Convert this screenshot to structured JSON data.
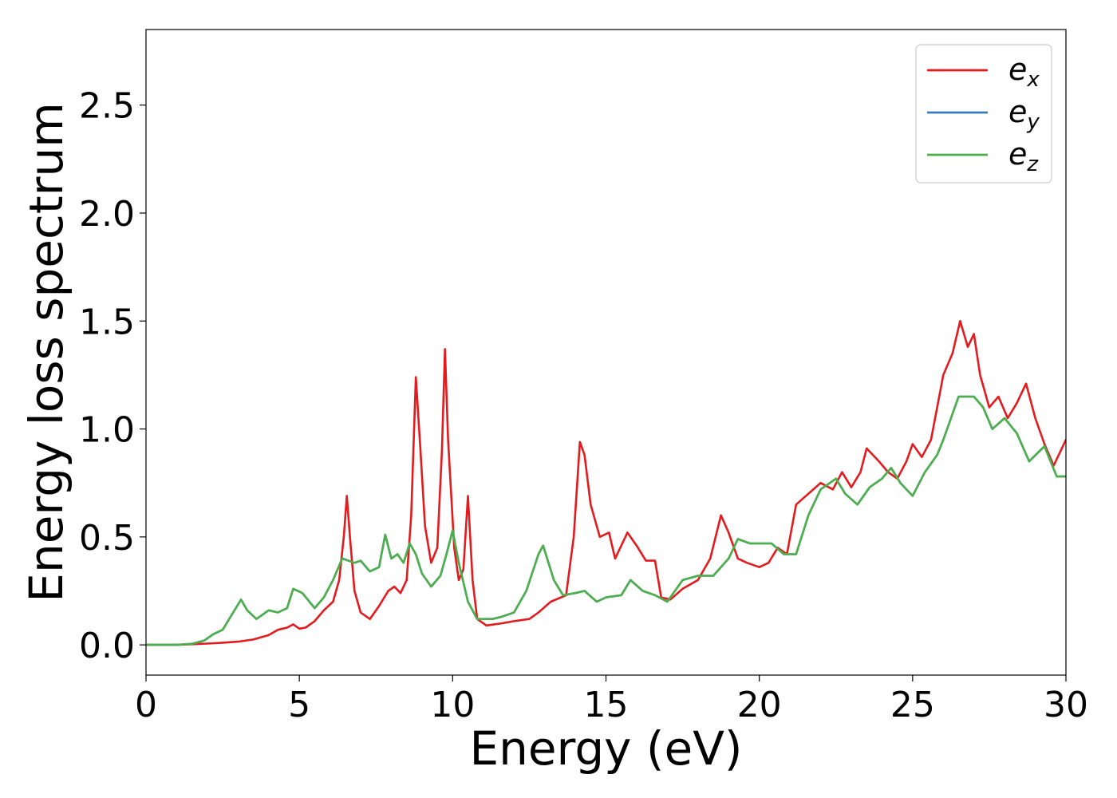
{
  "chart_data": {
    "type": "line",
    "title": "",
    "xlabel": "Energy (eV)",
    "ylabel": "Energy loss spectrum",
    "xlim": [
      0,
      30
    ],
    "ylim": [
      -0.14,
      2.85
    ],
    "x_ticks": [
      {
        "value": 0,
        "label": "0"
      },
      {
        "value": 5,
        "label": "5"
      },
      {
        "value": 10,
        "label": "10"
      },
      {
        "value": 15,
        "label": "15"
      },
      {
        "value": 20,
        "label": "20"
      },
      {
        "value": 25,
        "label": "25"
      },
      {
        "value": 30,
        "label": "30"
      }
    ],
    "y_ticks": [
      {
        "value": 0.0,
        "label": "0.0"
      },
      {
        "value": 0.5,
        "label": "0.5"
      },
      {
        "value": 1.0,
        "label": "1.0"
      },
      {
        "value": 1.5,
        "label": "1.5"
      },
      {
        "value": 2.0,
        "label": "2.0"
      },
      {
        "value": 2.5,
        "label": "2.5"
      }
    ],
    "grid": false,
    "legend_position": "top-right",
    "series": [
      {
        "name": "e",
        "subscript": "x",
        "color": "#e41a1c",
        "points": [
          [
            0,
            0
          ],
          [
            1,
            0
          ],
          [
            1.5,
            0.003
          ],
          [
            2,
            0.006
          ],
          [
            2.5,
            0.01
          ],
          [
            3,
            0.015
          ],
          [
            3.5,
            0.025
          ],
          [
            4,
            0.045
          ],
          [
            4.3,
            0.07
          ],
          [
            4.6,
            0.08
          ],
          [
            4.8,
            0.095
          ],
          [
            5,
            0.075
          ],
          [
            5.2,
            0.08
          ],
          [
            5.5,
            0.11
          ],
          [
            5.8,
            0.16
          ],
          [
            6.1,
            0.2
          ],
          [
            6.3,
            0.3
          ],
          [
            6.45,
            0.5
          ],
          [
            6.55,
            0.69
          ],
          [
            6.65,
            0.5
          ],
          [
            6.8,
            0.25
          ],
          [
            7,
            0.15
          ],
          [
            7.3,
            0.12
          ],
          [
            7.6,
            0.18
          ],
          [
            7.9,
            0.25
          ],
          [
            8.1,
            0.27
          ],
          [
            8.3,
            0.24
          ],
          [
            8.5,
            0.3
          ],
          [
            8.65,
            0.6
          ],
          [
            8.8,
            1.24
          ],
          [
            8.95,
            0.9
          ],
          [
            9.1,
            0.55
          ],
          [
            9.3,
            0.38
          ],
          [
            9.5,
            0.45
          ],
          [
            9.65,
            0.9
          ],
          [
            9.75,
            1.37
          ],
          [
            9.85,
            0.95
          ],
          [
            10.05,
            0.45
          ],
          [
            10.2,
            0.3
          ],
          [
            10.35,
            0.35
          ],
          [
            10.5,
            0.69
          ],
          [
            10.65,
            0.3
          ],
          [
            10.8,
            0.12
          ],
          [
            11.1,
            0.09
          ],
          [
            11.6,
            0.1
          ],
          [
            12,
            0.11
          ],
          [
            12.5,
            0.12
          ],
          [
            12.8,
            0.15
          ],
          [
            13.2,
            0.2
          ],
          [
            13.7,
            0.23
          ],
          [
            13.95,
            0.5
          ],
          [
            14.15,
            0.94
          ],
          [
            14.3,
            0.88
          ],
          [
            14.5,
            0.65
          ],
          [
            14.8,
            0.5
          ],
          [
            15.1,
            0.52
          ],
          [
            15.3,
            0.4
          ],
          [
            15.7,
            0.52
          ],
          [
            16,
            0.46
          ],
          [
            16.3,
            0.39
          ],
          [
            16.6,
            0.39
          ],
          [
            16.8,
            0.22
          ],
          [
            17.1,
            0.21
          ],
          [
            17.5,
            0.26
          ],
          [
            18,
            0.3
          ],
          [
            18.4,
            0.4
          ],
          [
            18.75,
            0.6
          ],
          [
            19,
            0.52
          ],
          [
            19.3,
            0.4
          ],
          [
            19.6,
            0.38
          ],
          [
            20,
            0.36
          ],
          [
            20.3,
            0.38
          ],
          [
            20.6,
            0.45
          ],
          [
            20.9,
            0.42
          ],
          [
            21.2,
            0.65
          ],
          [
            21.6,
            0.7
          ],
          [
            22,
            0.75
          ],
          [
            22.4,
            0.72
          ],
          [
            22.7,
            0.8
          ],
          [
            23,
            0.73
          ],
          [
            23.3,
            0.8
          ],
          [
            23.5,
            0.91
          ],
          [
            23.9,
            0.85
          ],
          [
            24.2,
            0.8
          ],
          [
            24.5,
            0.77
          ],
          [
            24.8,
            0.85
          ],
          [
            25,
            0.93
          ],
          [
            25.3,
            0.87
          ],
          [
            25.6,
            0.95
          ],
          [
            26,
            1.25
          ],
          [
            26.3,
            1.35
          ],
          [
            26.55,
            1.5
          ],
          [
            26.8,
            1.38
          ],
          [
            27,
            1.44
          ],
          [
            27.2,
            1.25
          ],
          [
            27.5,
            1.1
          ],
          [
            27.8,
            1.15
          ],
          [
            28.1,
            1.05
          ],
          [
            28.4,
            1.12
          ],
          [
            28.7,
            1.21
          ],
          [
            29,
            1.05
          ],
          [
            29.3,
            0.93
          ],
          [
            29.6,
            0.83
          ],
          [
            30,
            0.95
          ]
        ]
      },
      {
        "name": "e",
        "subscript": "y",
        "color": "#377eb8",
        "points": [
          [
            0,
            0
          ],
          [
            1,
            0
          ],
          [
            1.5,
            0.005
          ],
          [
            1.9,
            0.02
          ],
          [
            2.2,
            0.05
          ],
          [
            2.5,
            0.07
          ],
          [
            2.8,
            0.14
          ],
          [
            3.1,
            0.21
          ],
          [
            3.3,
            0.16
          ],
          [
            3.6,
            0.12
          ],
          [
            4,
            0.16
          ],
          [
            4.3,
            0.15
          ],
          [
            4.6,
            0.17
          ],
          [
            4.8,
            0.26
          ],
          [
            5.1,
            0.24
          ],
          [
            5.5,
            0.17
          ],
          [
            5.8,
            0.22
          ],
          [
            6.1,
            0.3
          ],
          [
            6.4,
            0.4
          ],
          [
            6.8,
            0.38
          ],
          [
            7,
            0.39
          ],
          [
            7.3,
            0.34
          ],
          [
            7.6,
            0.36
          ],
          [
            7.8,
            0.51
          ],
          [
            8,
            0.4
          ],
          [
            8.2,
            0.42
          ],
          [
            8.4,
            0.38
          ],
          [
            8.6,
            0.47
          ],
          [
            8.8,
            0.42
          ],
          [
            9,
            0.33
          ],
          [
            9.3,
            0.27
          ],
          [
            9.6,
            0.32
          ],
          [
            9.8,
            0.42
          ],
          [
            10,
            0.53
          ],
          [
            10.2,
            0.38
          ],
          [
            10.5,
            0.2
          ],
          [
            10.8,
            0.12
          ],
          [
            11.3,
            0.12
          ],
          [
            11.6,
            0.13
          ],
          [
            12,
            0.15
          ],
          [
            12.4,
            0.25
          ],
          [
            12.8,
            0.42
          ],
          [
            12.95,
            0.46
          ],
          [
            13.3,
            0.3
          ],
          [
            13.6,
            0.23
          ],
          [
            14,
            0.24
          ],
          [
            14.3,
            0.25
          ],
          [
            14.7,
            0.2
          ],
          [
            15,
            0.22
          ],
          [
            15.5,
            0.23
          ],
          [
            15.8,
            0.3
          ],
          [
            16.2,
            0.25
          ],
          [
            16.6,
            0.23
          ],
          [
            17,
            0.2
          ],
          [
            17.5,
            0.3
          ],
          [
            18,
            0.32
          ],
          [
            18.5,
            0.32
          ],
          [
            19,
            0.4
          ],
          [
            19.3,
            0.49
          ],
          [
            19.7,
            0.47
          ],
          [
            20,
            0.47
          ],
          [
            20.4,
            0.47
          ],
          [
            20.8,
            0.42
          ],
          [
            21.2,
            0.42
          ],
          [
            21.6,
            0.6
          ],
          [
            22,
            0.72
          ],
          [
            22.5,
            0.77
          ],
          [
            22.8,
            0.7
          ],
          [
            23.2,
            0.65
          ],
          [
            23.6,
            0.73
          ],
          [
            24,
            0.77
          ],
          [
            24.3,
            0.82
          ],
          [
            24.6,
            0.75
          ],
          [
            25,
            0.69
          ],
          [
            25.4,
            0.8
          ],
          [
            25.8,
            0.88
          ],
          [
            26,
            0.95
          ],
          [
            26.5,
            1.15
          ],
          [
            27,
            1.15
          ],
          [
            27.3,
            1.1
          ],
          [
            27.6,
            1.0
          ],
          [
            28,
            1.05
          ],
          [
            28.4,
            0.98
          ],
          [
            28.8,
            0.85
          ],
          [
            29.3,
            0.92
          ],
          [
            29.7,
            0.78
          ],
          [
            30,
            0.78
          ]
        ]
      },
      {
        "name": "e",
        "subscript": "z",
        "color": "#4daf4a",
        "points": [
          [
            0,
            0
          ],
          [
            1,
            0
          ],
          [
            1.5,
            0.005
          ],
          [
            1.9,
            0.02
          ],
          [
            2.2,
            0.05
          ],
          [
            2.5,
            0.07
          ],
          [
            2.8,
            0.14
          ],
          [
            3.1,
            0.21
          ],
          [
            3.3,
            0.16
          ],
          [
            3.6,
            0.12
          ],
          [
            4,
            0.16
          ],
          [
            4.3,
            0.15
          ],
          [
            4.6,
            0.17
          ],
          [
            4.8,
            0.26
          ],
          [
            5.1,
            0.24
          ],
          [
            5.5,
            0.17
          ],
          [
            5.8,
            0.22
          ],
          [
            6.1,
            0.3
          ],
          [
            6.4,
            0.4
          ],
          [
            6.8,
            0.38
          ],
          [
            7,
            0.39
          ],
          [
            7.3,
            0.34
          ],
          [
            7.6,
            0.36
          ],
          [
            7.8,
            0.51
          ],
          [
            8,
            0.4
          ],
          [
            8.2,
            0.42
          ],
          [
            8.4,
            0.38
          ],
          [
            8.6,
            0.47
          ],
          [
            8.8,
            0.42
          ],
          [
            9,
            0.33
          ],
          [
            9.3,
            0.27
          ],
          [
            9.6,
            0.32
          ],
          [
            9.8,
            0.42
          ],
          [
            10,
            0.53
          ],
          [
            10.2,
            0.38
          ],
          [
            10.5,
            0.2
          ],
          [
            10.8,
            0.12
          ],
          [
            11.3,
            0.12
          ],
          [
            11.6,
            0.13
          ],
          [
            12,
            0.15
          ],
          [
            12.4,
            0.25
          ],
          [
            12.8,
            0.42
          ],
          [
            12.95,
            0.46
          ],
          [
            13.3,
            0.3
          ],
          [
            13.6,
            0.23
          ],
          [
            14,
            0.24
          ],
          [
            14.3,
            0.25
          ],
          [
            14.7,
            0.2
          ],
          [
            15,
            0.22
          ],
          [
            15.5,
            0.23
          ],
          [
            15.8,
            0.3
          ],
          [
            16.2,
            0.25
          ],
          [
            16.6,
            0.23
          ],
          [
            17,
            0.2
          ],
          [
            17.5,
            0.3
          ],
          [
            18,
            0.32
          ],
          [
            18.5,
            0.32
          ],
          [
            19,
            0.4
          ],
          [
            19.3,
            0.49
          ],
          [
            19.7,
            0.47
          ],
          [
            20,
            0.47
          ],
          [
            20.4,
            0.47
          ],
          [
            20.8,
            0.42
          ],
          [
            21.2,
            0.42
          ],
          [
            21.6,
            0.6
          ],
          [
            22,
            0.72
          ],
          [
            22.5,
            0.77
          ],
          [
            22.8,
            0.7
          ],
          [
            23.2,
            0.65
          ],
          [
            23.6,
            0.73
          ],
          [
            24,
            0.77
          ],
          [
            24.3,
            0.82
          ],
          [
            24.6,
            0.75
          ],
          [
            25,
            0.69
          ],
          [
            25.4,
            0.8
          ],
          [
            25.8,
            0.88
          ],
          [
            26,
            0.95
          ],
          [
            26.5,
            1.15
          ],
          [
            27,
            1.15
          ],
          [
            27.3,
            1.1
          ],
          [
            27.6,
            1.0
          ],
          [
            28,
            1.05
          ],
          [
            28.4,
            0.98
          ],
          [
            28.8,
            0.85
          ],
          [
            29.3,
            0.92
          ],
          [
            29.7,
            0.78
          ],
          [
            30,
            0.78
          ]
        ]
      }
    ]
  }
}
